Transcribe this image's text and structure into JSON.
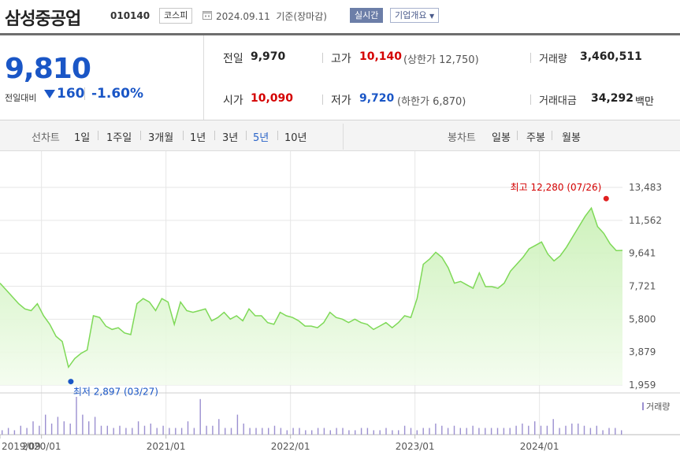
{
  "header": {
    "name": "삼성중공업",
    "code": "010140",
    "market": "코스피",
    "date": "2024.09.11",
    "basis": "기준(장마감)",
    "realtime_label": "실시간",
    "corp_info_label": "기업개요"
  },
  "quote": {
    "price": "9,810",
    "change_label": "전일대비",
    "change": "160",
    "change_pct": "-1.60%",
    "prev_close_label": "전일",
    "prev_close": "9,970",
    "high_label": "고가",
    "high": "10,140",
    "upper_limit": "(상한가 12,750)",
    "volume_label": "거래량",
    "volume": "3,460,511",
    "open_label": "시가",
    "open": "10,090",
    "low_label": "저가",
    "low": "9,720",
    "lower_limit": "(하한가 6,870)",
    "amount_label": "거래대금",
    "amount": "34,292",
    "amount_unit": "백만"
  },
  "tabs": {
    "line_label": "선차트",
    "periods": [
      "1일",
      "1주일",
      "3개월",
      "1년",
      "3년",
      "5년",
      "10년"
    ],
    "selected_period": "5년",
    "candle_label": "봉차트",
    "candles": [
      "일봉",
      "주봉",
      "월봉"
    ]
  },
  "colors": {
    "price_down": "#1a56c6",
    "price_up": "#d40000",
    "line": "#7ed957",
    "fill": "#e2f8d8",
    "volume_bar": "#9b8fd0"
  },
  "chart_data": {
    "type": "area",
    "ylim": [
      1959,
      13483
    ],
    "y_ticks": [
      "13,483",
      "11,562",
      "9,641",
      "7,721",
      "5,800",
      "3,879",
      "1,959"
    ],
    "x_ticks": [
      "2019/09",
      "2020/01",
      "2021/01",
      "2022/01",
      "2023/01",
      "2024/01"
    ],
    "x_start": "2019/09",
    "x_end": "2024/09",
    "high_annotation": "최고 12,280 (07/26)",
    "low_annotation": "최저 2,897 (03/27)",
    "volume_label": "거래량",
    "high_point": {
      "x": 4.85,
      "y": 12280
    },
    "low_point": {
      "x": 0.55,
      "y": 2897
    },
    "series": [
      {
        "x": [
          0,
          0.05,
          0.1,
          0.15,
          0.2,
          0.25,
          0.3,
          0.35,
          0.4,
          0.45,
          0.5,
          0.55,
          0.6,
          0.65,
          0.7,
          0.75,
          0.8,
          0.85,
          0.9,
          0.95,
          1.0,
          1.05,
          1.1,
          1.15,
          1.2,
          1.25,
          1.3,
          1.35,
          1.4,
          1.45,
          1.5,
          1.55,
          1.6,
          1.65,
          1.7,
          1.75,
          1.8,
          1.85,
          1.9,
          1.95,
          2.0,
          2.05,
          2.1,
          2.15,
          2.2,
          2.25,
          2.3,
          2.35,
          2.4,
          2.45,
          2.5,
          2.55,
          2.6,
          2.65,
          2.7,
          2.75,
          2.8,
          2.85,
          2.9,
          2.95,
          3.0,
          3.05,
          3.1,
          3.15,
          3.2,
          3.25,
          3.3,
          3.35,
          3.4,
          3.45,
          3.5,
          3.55,
          3.6,
          3.65,
          3.7,
          3.75,
          3.8,
          3.85,
          3.9,
          3.95,
          4.0,
          4.05,
          4.1,
          4.15,
          4.2,
          4.25,
          4.3,
          4.35,
          4.4,
          4.45,
          4.5,
          4.55,
          4.6,
          4.65,
          4.7,
          4.75,
          4.8,
          4.85,
          4.9,
          4.95,
          5.0
        ],
        "values": [
          7900,
          7500,
          7100,
          6700,
          6400,
          6300,
          6700,
          6000,
          5500,
          4800,
          4500,
          3000,
          3500,
          3800,
          4000,
          6000,
          5900,
          5400,
          5200,
          5300,
          5000,
          4900,
          6700,
          7000,
          6800,
          6300,
          7000,
          6800,
          5500,
          6800,
          6300,
          6200,
          6300,
          6400,
          5700,
          5900,
          6200,
          5800,
          6000,
          5700,
          6400,
          6000,
          6000,
          5600,
          5500,
          6200,
          6000,
          5900,
          5700,
          5400,
          5400,
          5300,
          5600,
          6200,
          5900,
          5800,
          5600,
          5800,
          5600,
          5500,
          5200,
          5400,
          5600,
          5300,
          5600,
          6000,
          5900,
          7000,
          9000,
          9300,
          9700,
          9400,
          8800,
          7900,
          8000,
          7800,
          7600,
          8500,
          7700,
          7700,
          7600,
          7900,
          8600,
          9000,
          9400,
          9900,
          10100,
          10300,
          9600,
          9200,
          9500,
          10000,
          10600,
          11200,
          11800,
          12280,
          11200,
          10800,
          10200,
          9800,
          9810
        ]
      }
    ],
    "volume": [
      2,
      3,
      2,
      4,
      3,
      6,
      4,
      9,
      5,
      8,
      6,
      5,
      17,
      9,
      6,
      8,
      4,
      4,
      3,
      4,
      3,
      3,
      6,
      4,
      5,
      3,
      4,
      3,
      3,
      3,
      6,
      3,
      16,
      4,
      4,
      7,
      3,
      3,
      9,
      5,
      3,
      3,
      3,
      3,
      4,
      3,
      2,
      3,
      3,
      2,
      2,
      3,
      3,
      2,
      3,
      3,
      2,
      2,
      3,
      3,
      2,
      2,
      3,
      2,
      2,
      4,
      3,
      2,
      3,
      3,
      5,
      4,
      3,
      4,
      3,
      3,
      4,
      3,
      3,
      3,
      3,
      3,
      3,
      4,
      5,
      4,
      6,
      4,
      4,
      7,
      3,
      4,
      5,
      5,
      4,
      3,
      4,
      2,
      3,
      3,
      2
    ]
  }
}
